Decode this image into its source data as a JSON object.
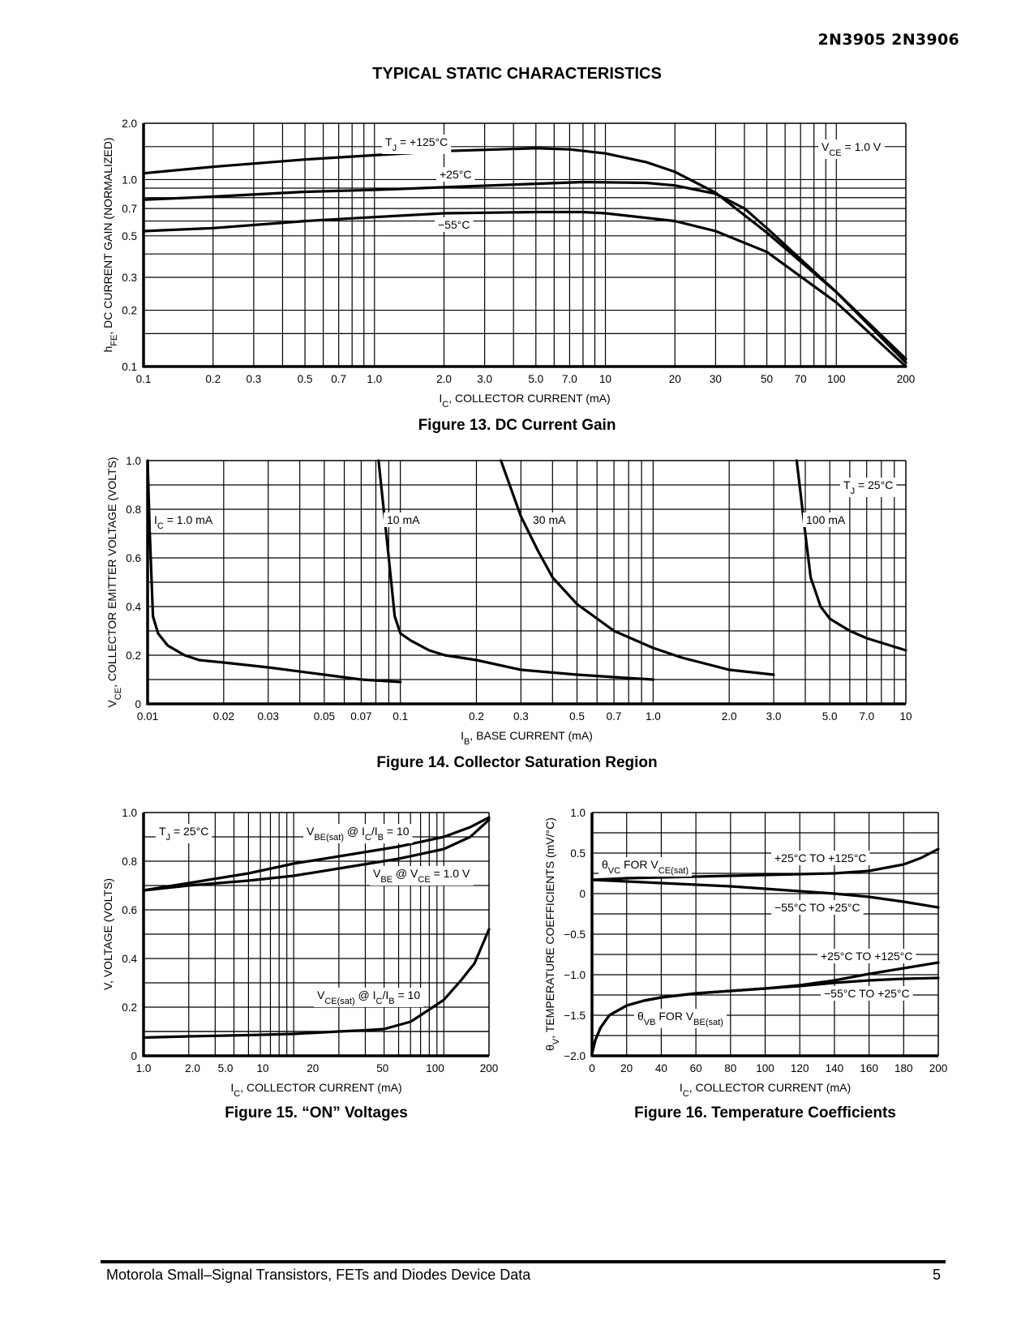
{
  "header": {
    "part_numbers": "2N3905 2N3906"
  },
  "section_title": "TYPICAL STATIC CHARACTERISTICS",
  "footer": {
    "text": "Motorola Small–Signal Transistors, FETs and Diodes Device Data",
    "page": "5"
  },
  "chart_data": [
    {
      "id": "fig13",
      "type": "line",
      "caption": "Figure 13. DC Current Gain",
      "xlabel_main": "I",
      "xlabel_sub": "C",
      "xlabel_rest": ", COLLECTOR CURRENT (mA)",
      "ylabel_main": "h",
      "ylabel_sub": "FE",
      "ylabel_rest": ", DC CURRENT GAIN (NORMALIZED)",
      "xscale": "log",
      "yscale": "log",
      "xlim": [
        0.1,
        200
      ],
      "ylim": [
        0.1,
        2.0
      ],
      "xticks": [
        0.1,
        0.2,
        0.3,
        0.5,
        0.7,
        1.0,
        2.0,
        3.0,
        5.0,
        7.0,
        10,
        20,
        30,
        50,
        70,
        100,
        200
      ],
      "xtick_labels": [
        "0.1",
        "0.2",
        "0.3",
        "0.5",
        "0.7",
        "1.0",
        "2.0",
        "3.0",
        "5.0",
        "7.0",
        "10",
        "20",
        "30",
        "50",
        "70",
        "100",
        "200"
      ],
      "yticks": [
        0.1,
        0.2,
        0.3,
        0.5,
        0.7,
        1.0,
        2.0
      ],
      "ytick_labels": [
        "0.1",
        "0.2",
        "0.3",
        "0.5",
        "0.7",
        "1.0",
        "2.0"
      ],
      "grid": true,
      "annotations": [
        {
          "main": "T",
          "sub": "J",
          "rest": " = +125°C"
        },
        {
          "main": "+25°C",
          "sub": "",
          "rest": ""
        },
        {
          "main": "−55°C",
          "sub": "",
          "rest": ""
        },
        {
          "main": "V",
          "sub": "CE",
          "rest": " = 1.0 V"
        }
      ],
      "series": [
        {
          "name": "+125°C",
          "x": [
            0.1,
            0.2,
            0.5,
            1.0,
            2.0,
            5.0,
            7.0,
            10,
            15,
            20,
            30,
            50,
            100,
            200
          ],
          "y": [
            1.08,
            1.17,
            1.28,
            1.35,
            1.42,
            1.47,
            1.45,
            1.38,
            1.24,
            1.1,
            0.85,
            0.52,
            0.25,
            0.11
          ]
        },
        {
          "name": "+25°C",
          "x": [
            0.1,
            0.2,
            0.5,
            1.0,
            2.0,
            5.0,
            8.0,
            15,
            20,
            30,
            40,
            50,
            100,
            200
          ],
          "y": [
            0.78,
            0.81,
            0.86,
            0.88,
            0.91,
            0.95,
            0.97,
            0.96,
            0.93,
            0.84,
            0.7,
            0.55,
            0.25,
            0.105
          ]
        },
        {
          "name": "−55°C",
          "x": [
            0.1,
            0.2,
            0.5,
            1.0,
            2.0,
            5.0,
            8.0,
            10,
            20,
            30,
            50,
            100,
            200
          ],
          "y": [
            0.53,
            0.55,
            0.6,
            0.63,
            0.66,
            0.67,
            0.67,
            0.66,
            0.6,
            0.53,
            0.41,
            0.22,
            0.1
          ]
        }
      ]
    },
    {
      "id": "fig14",
      "type": "line",
      "caption": "Figure 14. Collector Saturation Region",
      "xlabel_main": "I",
      "xlabel_sub": "B",
      "xlabel_rest": ", BASE CURRENT (mA)",
      "ylabel_main": "V",
      "ylabel_sub": "CE",
      "ylabel_rest": ", COLLECTOR EMITTER VOLTAGE (VOLTS)",
      "xscale": "log",
      "yscale": "linear",
      "xlim": [
        0.01,
        10
      ],
      "ylim": [
        0,
        1.0
      ],
      "xticks": [
        0.01,
        0.02,
        0.03,
        0.05,
        0.07,
        0.1,
        0.2,
        0.3,
        0.5,
        0.7,
        1.0,
        2.0,
        3.0,
        5.0,
        7.0,
        10
      ],
      "xtick_labels": [
        "0.01",
        "0.02",
        "0.03",
        "0.05",
        "0.07",
        "0.1",
        "0.2",
        "0.3",
        "0.5",
        "0.7",
        "1.0",
        "2.0",
        "3.0",
        "5.0",
        "7.0",
        "10"
      ],
      "yticks": [
        0,
        0.2,
        0.4,
        0.6,
        0.8,
        1.0
      ],
      "ytick_labels": [
        "0",
        "0.2",
        "0.4",
        "0.6",
        "0.8",
        "1.0"
      ],
      "grid": true,
      "annotations": [
        {
          "main": "I",
          "sub": "C",
          "rest": " = 1.0 mA"
        },
        {
          "main": "10 mA",
          "sub": "",
          "rest": ""
        },
        {
          "main": "30 mA",
          "sub": "",
          "rest": ""
        },
        {
          "main": "100 mA",
          "sub": "",
          "rest": ""
        },
        {
          "main": "T",
          "sub": "J",
          "rest": " = 25°C"
        }
      ],
      "series": [
        {
          "name": "I_C = 1.0 mA",
          "x": [
            0.01,
            0.0102,
            0.0105,
            0.011,
            0.012,
            0.014,
            0.016,
            0.02,
            0.03,
            0.05,
            0.07,
            0.1
          ],
          "y": [
            1.0,
            0.7,
            0.36,
            0.29,
            0.24,
            0.2,
            0.18,
            0.17,
            0.15,
            0.12,
            0.1,
            0.09
          ]
        },
        {
          "name": "10 mA",
          "x": [
            0.082,
            0.09,
            0.095,
            0.1,
            0.11,
            0.13,
            0.15,
            0.2,
            0.3,
            0.5,
            0.7,
            1.0
          ],
          "y": [
            1.0,
            0.6,
            0.36,
            0.29,
            0.26,
            0.22,
            0.2,
            0.18,
            0.14,
            0.12,
            0.11,
            0.1
          ]
        },
        {
          "name": "30 mA",
          "x": [
            0.25,
            0.3,
            0.35,
            0.4,
            0.5,
            0.7,
            1.0,
            1.3,
            2.0,
            3.0
          ],
          "y": [
            1.0,
            0.77,
            0.63,
            0.52,
            0.41,
            0.3,
            0.23,
            0.19,
            0.14,
            0.12
          ]
        },
        {
          "name": "100 mA",
          "x": [
            3.7,
            4.0,
            4.2,
            4.6,
            5.0,
            6.0,
            7.0,
            10
          ],
          "y": [
            1.0,
            0.7,
            0.52,
            0.4,
            0.35,
            0.3,
            0.27,
            0.22
          ]
        }
      ]
    },
    {
      "id": "fig15",
      "type": "line",
      "caption": "Figure 15. “ON” Voltages",
      "xlabel_main": "I",
      "xlabel_sub": "C",
      "xlabel_rest": ", COLLECTOR CURRENT (mA)",
      "ylabel_main": "V, VOLTAGE (VOLTS)",
      "ylabel_sub": "",
      "ylabel_rest": "",
      "xscale": "log",
      "yscale": "linear",
      "xlim": [
        1.0,
        200
      ],
      "ylim": [
        0,
        1.0
      ],
      "xtick_labels": [
        "1.0",
        "2.0",
        "5.0",
        "10",
        "20",
        "50",
        "100",
        "200"
      ],
      "yticks": [
        0,
        0.2,
        0.4,
        0.6,
        0.8,
        1.0
      ],
      "ytick_labels": [
        "0",
        "0.2",
        "0.4",
        "0.6",
        "0.8",
        "1.0"
      ],
      "grid": true,
      "annotations": [
        {
          "main": "T",
          "sub": "J",
          "rest": " = 25°C"
        },
        {
          "main": "V",
          "sub": "BE(sat)",
          "rest": " @ I",
          "sub2": "C",
          "rest2": "/I",
          "sub3": "B",
          "rest3": " = 10"
        },
        {
          "main": "V",
          "sub": "BE",
          "rest": " @ V",
          "sub2": "CE",
          "rest2": " = 1.0 V",
          "sub3": "",
          "rest3": ""
        },
        {
          "main": "V",
          "sub": "CE(sat)",
          "rest": " @ I",
          "sub2": "C",
          "rest2": "/I",
          "sub3": "B",
          "rest3": " = 10"
        }
      ],
      "series": [
        {
          "name": "VBE(sat) @ IC/IB = 10",
          "x": [
            1.0,
            2.0,
            5.0,
            10,
            20,
            50,
            100,
            150,
            200
          ],
          "y": [
            0.68,
            0.71,
            0.75,
            0.79,
            0.82,
            0.86,
            0.9,
            0.94,
            0.98
          ]
        },
        {
          "name": "VBE @ VCE = 1.0 V",
          "x": [
            1.0,
            2.0,
            5.0,
            10,
            20,
            50,
            100,
            150,
            200
          ],
          "y": [
            0.68,
            0.7,
            0.72,
            0.74,
            0.77,
            0.81,
            0.85,
            0.9,
            0.97
          ]
        },
        {
          "name": "VCE(sat) @ IC/IB = 10",
          "x": [
            1.0,
            2.0,
            5.0,
            10,
            20,
            30,
            40,
            60,
            80,
            100,
            130,
            160,
            200
          ],
          "y": [
            0.075,
            0.08,
            0.085,
            0.09,
            0.1,
            0.105,
            0.11,
            0.14,
            0.19,
            0.23,
            0.31,
            0.38,
            0.52
          ]
        }
      ]
    },
    {
      "id": "fig16",
      "type": "line",
      "caption": "Figure 16. Temperature Coefficients",
      "xlabel_main": "I",
      "xlabel_sub": "C",
      "xlabel_rest": ", COLLECTOR CURRENT (mA)",
      "ylabel_main": "θ",
      "ylabel_sub": "V",
      "ylabel_rest": ", TEMPERATURE COEFFICIENTS (mV/°C)",
      "xscale": "linear",
      "yscale": "linear",
      "xlim": [
        0,
        200
      ],
      "ylim": [
        -2.0,
        1.0
      ],
      "xticks": [
        0,
        20,
        40,
        60,
        80,
        100,
        120,
        140,
        160,
        180,
        200
      ],
      "xtick_labels": [
        "0",
        "20",
        "40",
        "60",
        "80",
        "100",
        "120",
        "140",
        "160",
        "180",
        "200"
      ],
      "yticks": [
        -2.0,
        -1.5,
        -1.0,
        -0.5,
        0,
        0.5,
        1.0
      ],
      "ytick_labels": [
        "−2.0",
        "−1.5",
        "−1.0",
        "−0.5",
        "0",
        "0.5",
        "1.0"
      ],
      "grid": true,
      "annotations": [
        {
          "main": "θ",
          "sub": "VC",
          "rest": " FOR V",
          "sub2": "CE(sat)",
          "rest2": ""
        },
        {
          "main": "+25°C TO +125°C",
          "sub": "",
          "rest": ""
        },
        {
          "main": "−55°C TO +25°C",
          "sub": "",
          "rest": ""
        },
        {
          "main": "+25°C TO +125°C",
          "sub": "",
          "rest": ""
        },
        {
          "main": "−55°C TO +25°C",
          "sub": "",
          "rest": ""
        },
        {
          "main": "θ",
          "sub": "VB",
          "rest": " FOR V",
          "sub2": "BE(sat)",
          "rest2": ""
        }
      ],
      "series": [
        {
          "name": "θVC +25°C TO +125°C",
          "x": [
            0,
            20,
            40,
            60,
            80,
            100,
            120,
            140,
            160,
            180,
            190,
            200
          ],
          "y": [
            0.17,
            0.19,
            0.2,
            0.21,
            0.22,
            0.23,
            0.24,
            0.25,
            0.28,
            0.36,
            0.44,
            0.55
          ]
        },
        {
          "name": "θVC −55°C TO +25°C",
          "x": [
            0,
            20,
            40,
            60,
            80,
            100,
            120,
            140,
            160,
            180,
            200
          ],
          "y": [
            0.17,
            0.15,
            0.13,
            0.11,
            0.09,
            0.06,
            0.03,
            0.0,
            -0.04,
            -0.1,
            -0.17
          ]
        },
        {
          "name": "θVB +25°C TO +125°C",
          "x": [
            0,
            2,
            5,
            10,
            20,
            30,
            40,
            60,
            80,
            100,
            120,
            140,
            160,
            180,
            200
          ],
          "y": [
            -1.97,
            -1.8,
            -1.65,
            -1.5,
            -1.38,
            -1.32,
            -1.28,
            -1.23,
            -1.2,
            -1.17,
            -1.13,
            -1.07,
            -0.99,
            -0.92,
            -0.85
          ]
        },
        {
          "name": "θVB −55°C TO +25°C",
          "x": [
            0,
            2,
            5,
            10,
            20,
            30,
            40,
            60,
            80,
            100,
            120,
            140,
            160,
            180,
            200
          ],
          "y": [
            -1.97,
            -1.8,
            -1.65,
            -1.5,
            -1.38,
            -1.32,
            -1.28,
            -1.23,
            -1.2,
            -1.17,
            -1.14,
            -1.1,
            -1.07,
            -1.05,
            -1.04
          ]
        }
      ]
    }
  ]
}
